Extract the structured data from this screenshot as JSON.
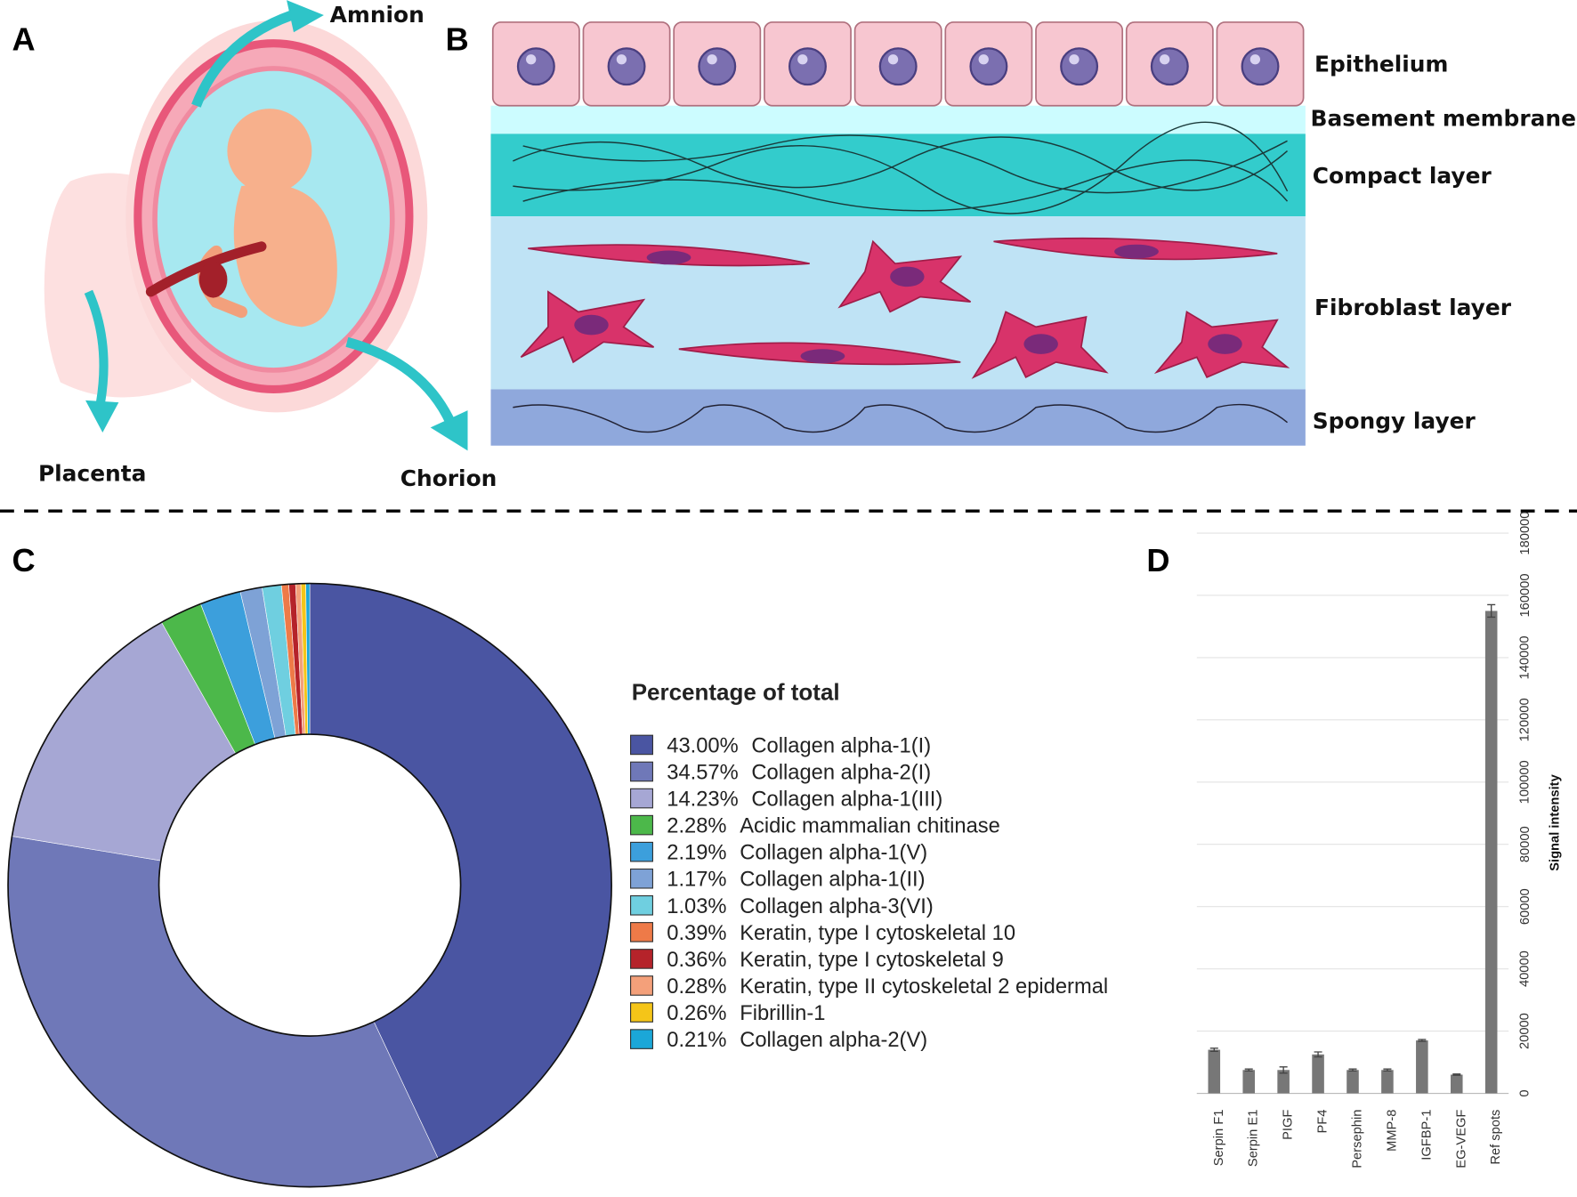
{
  "panels": [
    "A",
    "B",
    "C",
    "D"
  ],
  "panel_a": {
    "labels": [
      "Amnion",
      "Placenta",
      "Chorion"
    ]
  },
  "panel_b": {
    "layers": [
      "Epithelium",
      "Basement membrane",
      "Compact layer",
      "Fibroblast layer",
      "Spongy layer"
    ]
  },
  "chart_data": [
    {
      "type": "pie",
      "donut": true,
      "legend_title": "Percentage of total",
      "categories": [
        "Collagen alpha-1(I)",
        "Collagen alpha-2(I)",
        "Collagen alpha-1(III)",
        "Acidic mammalian chitinase",
        "Collagen alpha-1(V)",
        "Collagen alpha-1(II)",
        "Collagen alpha-3(VI)",
        "Keratin, type I cytoskeletal 10",
        "Keratin, type I cytoskeletal 9",
        "Keratin, type II cytoskeletal 2 epidermal",
        "Fibrillin-1",
        "Collagen alpha-2(V)"
      ],
      "values": [
        43.0,
        34.57,
        14.23,
        2.28,
        2.19,
        1.17,
        1.03,
        0.39,
        0.36,
        0.28,
        0.26,
        0.21
      ],
      "value_labels": [
        "43.00%",
        "34.57%",
        "14.23%",
        "2.28%",
        "2.19%",
        "1.17%",
        "1.03%",
        "0.39%",
        "0.36%",
        "0.28%",
        "0.26%",
        "0.21%"
      ],
      "colors": [
        "#4a55a2",
        "#6f78b8",
        "#a6a7d4",
        "#4cb84a",
        "#3c9fdc",
        "#7ea2d6",
        "#6fcfe0",
        "#ee7a48",
        "#b5232a",
        "#f4a07a",
        "#f5c518",
        "#1ba7d8"
      ]
    },
    {
      "type": "bar",
      "ylabel": "Signal intensity",
      "categories": [
        "Serpin F1",
        "Serpin E1",
        "PIGF",
        "PF4",
        "Persephin",
        "MMP-8",
        "IGFBP-1",
        "EG-VEGF",
        "Ref spots"
      ],
      "values": [
        14000,
        7500,
        7500,
        12500,
        7500,
        7500,
        17000,
        6000,
        155000
      ],
      "errors": [
        500,
        300,
        1000,
        800,
        300,
        300,
        300,
        200,
        2000
      ],
      "color": "#777777",
      "ylim": [
        0,
        180000
      ],
      "yticks": [
        0,
        20000,
        40000,
        60000,
        80000,
        100000,
        120000,
        140000,
        160000,
        180000
      ],
      "grid": true
    }
  ]
}
